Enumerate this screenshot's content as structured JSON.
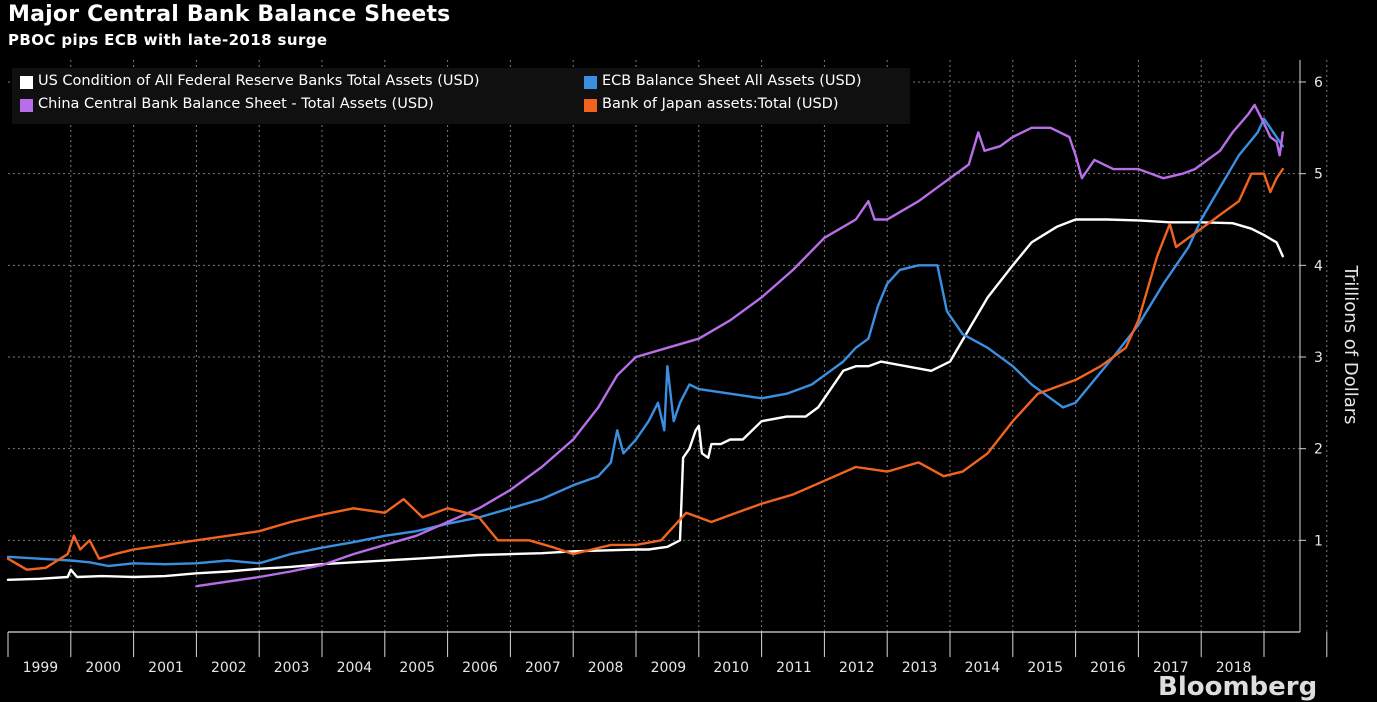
{
  "title": "Major Central Bank Balance Sheets",
  "subtitle": "PBOC pips ECB with late-2018 surge",
  "watermark": "Bloomberg",
  "chart_data": {
    "type": "line",
    "title": "Major Central Bank Balance Sheets",
    "subtitle": "PBOC pips ECB with late-2018 surge",
    "xlabel": "",
    "ylabel": "Trillions of Dollars",
    "y_axis_position": "right",
    "xlim": [
      1998.0,
      2018.3
    ],
    "ylim": [
      0,
      6
    ],
    "y_ticks": [
      1,
      2,
      3,
      4,
      5,
      6
    ],
    "x_tick_labels": [
      "1999",
      "2000",
      "2001",
      "2002",
      "2003",
      "2004",
      "2005",
      "2006",
      "2007",
      "2008",
      "2009",
      "2010",
      "2011",
      "2012",
      "2013",
      "2014",
      "2015",
      "2016",
      "2017",
      "2018"
    ],
    "grid": true,
    "legend_position": "top-left",
    "series": [
      {
        "name": "US Condition of All Federal Reserve Banks Total Assets (USD)",
        "color": "#ffffff",
        "points": [
          [
            1998.0,
            0.57
          ],
          [
            1998.5,
            0.58
          ],
          [
            1998.95,
            0.6
          ],
          [
            1999.0,
            0.68
          ],
          [
            1999.1,
            0.6
          ],
          [
            1999.5,
            0.61
          ],
          [
            2000.0,
            0.6
          ],
          [
            2000.5,
            0.61
          ],
          [
            2001.0,
            0.64
          ],
          [
            2001.5,
            0.66
          ],
          [
            2002.0,
            0.69
          ],
          [
            2002.5,
            0.71
          ],
          [
            2003.0,
            0.74
          ],
          [
            2003.5,
            0.76
          ],
          [
            2004.0,
            0.78
          ],
          [
            2004.5,
            0.8
          ],
          [
            2005.0,
            0.82
          ],
          [
            2005.5,
            0.84
          ],
          [
            2006.0,
            0.85
          ],
          [
            2006.5,
            0.86
          ],
          [
            2007.0,
            0.88
          ],
          [
            2007.5,
            0.89
          ],
          [
            2008.0,
            0.9
          ],
          [
            2008.2,
            0.9
          ],
          [
            2008.5,
            0.93
          ],
          [
            2008.7,
            1.0
          ],
          [
            2008.75,
            1.9
          ],
          [
            2008.85,
            2.0
          ],
          [
            2008.95,
            2.2
          ],
          [
            2009.0,
            2.25
          ],
          [
            2009.05,
            1.95
          ],
          [
            2009.15,
            1.9
          ],
          [
            2009.2,
            2.05
          ],
          [
            2009.35,
            2.05
          ],
          [
            2009.5,
            2.1
          ],
          [
            2009.7,
            2.1
          ],
          [
            2010.0,
            2.3
          ],
          [
            2010.4,
            2.35
          ],
          [
            2010.7,
            2.35
          ],
          [
            2010.9,
            2.45
          ],
          [
            2011.1,
            2.65
          ],
          [
            2011.3,
            2.85
          ],
          [
            2011.5,
            2.9
          ],
          [
            2011.7,
            2.9
          ],
          [
            2011.9,
            2.95
          ],
          [
            2012.3,
            2.9
          ],
          [
            2012.7,
            2.85
          ],
          [
            2013.0,
            2.95
          ],
          [
            2013.3,
            3.3
          ],
          [
            2013.6,
            3.65
          ],
          [
            2014.0,
            4.0
          ],
          [
            2014.3,
            4.25
          ],
          [
            2014.7,
            4.42
          ],
          [
            2015.0,
            4.5
          ],
          [
            2015.5,
            4.5
          ],
          [
            2016.0,
            4.49
          ],
          [
            2016.5,
            4.47
          ],
          [
            2017.0,
            4.47
          ],
          [
            2017.5,
            4.46
          ],
          [
            2017.8,
            4.4
          ],
          [
            2018.0,
            4.33
          ],
          [
            2018.2,
            4.25
          ],
          [
            2018.3,
            4.1
          ]
        ]
      },
      {
        "name": "ECB Balance Sheet All Assets (USD)",
        "color": "#3a8fe0",
        "points": [
          [
            1998.0,
            0.82
          ],
          [
            1998.5,
            0.8
          ],
          [
            1999.0,
            0.78
          ],
          [
            1999.3,
            0.76
          ],
          [
            1999.6,
            0.72
          ],
          [
            2000.0,
            0.75
          ],
          [
            2000.5,
            0.74
          ],
          [
            2001.0,
            0.75
          ],
          [
            2001.5,
            0.78
          ],
          [
            2002.0,
            0.75
          ],
          [
            2002.5,
            0.85
          ],
          [
            2003.0,
            0.92
          ],
          [
            2003.5,
            0.98
          ],
          [
            2004.0,
            1.05
          ],
          [
            2004.5,
            1.1
          ],
          [
            2005.0,
            1.18
          ],
          [
            2005.5,
            1.25
          ],
          [
            2006.0,
            1.35
          ],
          [
            2006.5,
            1.45
          ],
          [
            2007.0,
            1.6
          ],
          [
            2007.4,
            1.7
          ],
          [
            2007.6,
            1.85
          ],
          [
            2007.7,
            2.2
          ],
          [
            2007.8,
            1.95
          ],
          [
            2008.0,
            2.1
          ],
          [
            2008.2,
            2.3
          ],
          [
            2008.35,
            2.5
          ],
          [
            2008.45,
            2.2
          ],
          [
            2008.5,
            2.9
          ],
          [
            2008.6,
            2.3
          ],
          [
            2008.7,
            2.5
          ],
          [
            2008.85,
            2.7
          ],
          [
            2009.0,
            2.65
          ],
          [
            2009.5,
            2.6
          ],
          [
            2010.0,
            2.55
          ],
          [
            2010.4,
            2.6
          ],
          [
            2010.6,
            2.65
          ],
          [
            2010.8,
            2.7
          ],
          [
            2011.0,
            2.8
          ],
          [
            2011.3,
            2.95
          ],
          [
            2011.5,
            3.1
          ],
          [
            2011.7,
            3.2
          ],
          [
            2011.85,
            3.55
          ],
          [
            2012.0,
            3.8
          ],
          [
            2012.2,
            3.95
          ],
          [
            2012.5,
            4.0
          ],
          [
            2012.8,
            4.0
          ],
          [
            2012.95,
            3.5
          ],
          [
            2013.2,
            3.25
          ],
          [
            2013.6,
            3.1
          ],
          [
            2014.0,
            2.9
          ],
          [
            2014.3,
            2.7
          ],
          [
            2014.6,
            2.55
          ],
          [
            2014.8,
            2.45
          ],
          [
            2015.0,
            2.5
          ],
          [
            2015.3,
            2.75
          ],
          [
            2015.6,
            3.0
          ],
          [
            2016.0,
            3.35
          ],
          [
            2016.4,
            3.8
          ],
          [
            2016.8,
            4.2
          ],
          [
            2017.0,
            4.5
          ],
          [
            2017.3,
            4.85
          ],
          [
            2017.6,
            5.2
          ],
          [
            2017.9,
            5.45
          ],
          [
            2018.0,
            5.6
          ],
          [
            2018.15,
            5.45
          ],
          [
            2018.3,
            5.3
          ]
        ]
      },
      {
        "name": "China Central Bank Balance Sheet - Total Assets (USD)",
        "color": "#b86ee8",
        "points": [
          [
            2001.0,
            0.5
          ],
          [
            2001.5,
            0.55
          ],
          [
            2002.0,
            0.6
          ],
          [
            2002.5,
            0.66
          ],
          [
            2003.0,
            0.73
          ],
          [
            2003.5,
            0.85
          ],
          [
            2004.0,
            0.95
          ],
          [
            2004.5,
            1.05
          ],
          [
            2005.0,
            1.2
          ],
          [
            2005.5,
            1.35
          ],
          [
            2006.0,
            1.55
          ],
          [
            2006.5,
            1.8
          ],
          [
            2007.0,
            2.1
          ],
          [
            2007.4,
            2.45
          ],
          [
            2007.7,
            2.8
          ],
          [
            2008.0,
            3.0
          ],
          [
            2008.5,
            3.1
          ],
          [
            2009.0,
            3.2
          ],
          [
            2009.5,
            3.4
          ],
          [
            2010.0,
            3.65
          ],
          [
            2010.5,
            3.95
          ],
          [
            2011.0,
            4.3
          ],
          [
            2011.5,
            4.5
          ],
          [
            2011.7,
            4.7
          ],
          [
            2011.8,
            4.5
          ],
          [
            2012.0,
            4.5
          ],
          [
            2012.5,
            4.7
          ],
          [
            2013.0,
            4.95
          ],
          [
            2013.3,
            5.1
          ],
          [
            2013.45,
            5.45
          ],
          [
            2013.55,
            5.25
          ],
          [
            2013.8,
            5.3
          ],
          [
            2014.0,
            5.4
          ],
          [
            2014.3,
            5.5
          ],
          [
            2014.6,
            5.5
          ],
          [
            2014.9,
            5.4
          ],
          [
            2015.0,
            5.2
          ],
          [
            2015.1,
            4.95
          ],
          [
            2015.3,
            5.15
          ],
          [
            2015.6,
            5.05
          ],
          [
            2016.0,
            5.05
          ],
          [
            2016.4,
            4.95
          ],
          [
            2016.7,
            5.0
          ],
          [
            2016.9,
            5.05
          ],
          [
            2017.1,
            5.15
          ],
          [
            2017.3,
            5.25
          ],
          [
            2017.5,
            5.45
          ],
          [
            2017.75,
            5.65
          ],
          [
            2017.85,
            5.75
          ],
          [
            2018.0,
            5.55
          ],
          [
            2018.1,
            5.4
          ],
          [
            2018.2,
            5.35
          ],
          [
            2018.25,
            5.2
          ],
          [
            2018.3,
            5.45
          ]
        ]
      },
      {
        "name": "Bank of Japan assets:Total (USD)",
        "color": "#f06420",
        "points": [
          [
            1998.0,
            0.8
          ],
          [
            1998.3,
            0.68
          ],
          [
            1998.6,
            0.7
          ],
          [
            1998.95,
            0.85
          ],
          [
            1999.05,
            1.05
          ],
          [
            1999.15,
            0.9
          ],
          [
            1999.3,
            1.0
          ],
          [
            1999.45,
            0.8
          ],
          [
            1999.7,
            0.85
          ],
          [
            2000.0,
            0.9
          ],
          [
            2000.5,
            0.95
          ],
          [
            2001.0,
            1.0
          ],
          [
            2001.5,
            1.05
          ],
          [
            2002.0,
            1.1
          ],
          [
            2002.5,
            1.2
          ],
          [
            2003.0,
            1.28
          ],
          [
            2003.5,
            1.35
          ],
          [
            2004.0,
            1.3
          ],
          [
            2004.3,
            1.45
          ],
          [
            2004.6,
            1.25
          ],
          [
            2005.0,
            1.35
          ],
          [
            2005.3,
            1.3
          ],
          [
            2005.5,
            1.25
          ],
          [
            2005.8,
            1.0
          ],
          [
            2006.3,
            1.0
          ],
          [
            2006.7,
            0.92
          ],
          [
            2007.0,
            0.85
          ],
          [
            2007.3,
            0.9
          ],
          [
            2007.6,
            0.95
          ],
          [
            2008.0,
            0.95
          ],
          [
            2008.4,
            1.0
          ],
          [
            2008.8,
            1.3
          ],
          [
            2009.2,
            1.2
          ],
          [
            2009.6,
            1.3
          ],
          [
            2010.0,
            1.4
          ],
          [
            2010.5,
            1.5
          ],
          [
            2011.0,
            1.65
          ],
          [
            2011.5,
            1.8
          ],
          [
            2012.0,
            1.75
          ],
          [
            2012.5,
            1.85
          ],
          [
            2012.9,
            1.7
          ],
          [
            2013.2,
            1.75
          ],
          [
            2013.6,
            1.95
          ],
          [
            2014.0,
            2.3
          ],
          [
            2014.4,
            2.6
          ],
          [
            2014.8,
            2.7
          ],
          [
            2015.0,
            2.75
          ],
          [
            2015.4,
            2.9
          ],
          [
            2015.8,
            3.1
          ],
          [
            2016.0,
            3.4
          ],
          [
            2016.3,
            4.1
          ],
          [
            2016.5,
            4.45
          ],
          [
            2016.6,
            4.2
          ],
          [
            2016.8,
            4.3
          ],
          [
            2017.0,
            4.4
          ],
          [
            2017.3,
            4.55
          ],
          [
            2017.6,
            4.7
          ],
          [
            2017.8,
            5.0
          ],
          [
            2018.0,
            5.0
          ],
          [
            2018.1,
            4.8
          ],
          [
            2018.2,
            4.95
          ],
          [
            2018.3,
            5.05
          ]
        ]
      }
    ]
  }
}
